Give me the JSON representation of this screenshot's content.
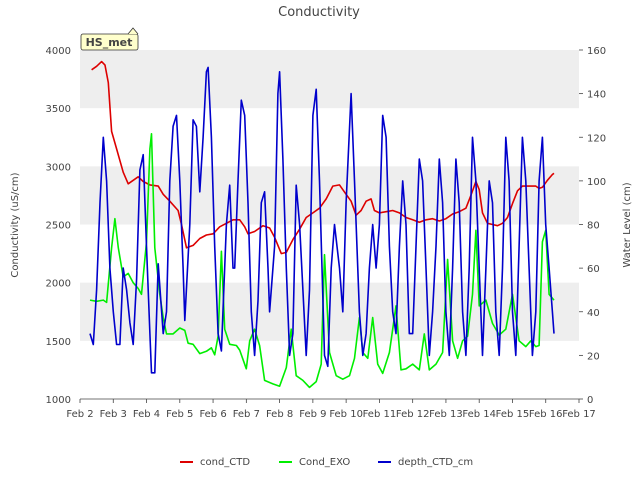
{
  "chart_data": {
    "type": "line",
    "title": "Conductivity",
    "badge": "HS_met",
    "ylabel": "Conductivity (uS/cm)",
    "y2label": "Water Level (cm)",
    "xlabel": "",
    "x_ticks": [
      "Feb 2",
      "Feb 3",
      "Feb 4",
      "Feb 5",
      "Feb 6",
      "Feb 7",
      "Feb 8",
      "Feb 9",
      "Feb 10",
      "Feb 11",
      "Feb 12",
      "Feb 13",
      "Feb 14",
      "Feb 15",
      "Feb 16",
      "Feb 17"
    ],
    "xlim": [
      2,
      17
    ],
    "ylim": [
      1000,
      4000
    ],
    "y_ticks": [
      1000,
      1500,
      2000,
      2500,
      3000,
      3500,
      4000
    ],
    "y2lim": [
      0,
      160
    ],
    "y2_ticks": [
      0,
      20,
      40,
      60,
      80,
      100,
      120,
      140,
      160
    ],
    "grid_bands": true,
    "legend_position": "bottom",
    "series": [
      {
        "name": "cond_CTD",
        "color": "#dd0000",
        "axis": "left",
        "points": [
          [
            2.35,
            3830
          ],
          [
            2.5,
            3860
          ],
          [
            2.65,
            3900
          ],
          [
            2.75,
            3870
          ],
          [
            2.85,
            3720
          ],
          [
            2.95,
            3300
          ],
          [
            3.1,
            3150
          ],
          [
            3.3,
            2950
          ],
          [
            3.45,
            2850
          ],
          [
            3.6,
            2880
          ],
          [
            3.75,
            2910
          ],
          [
            3.9,
            2870
          ],
          [
            4.1,
            2840
          ],
          [
            4.35,
            2830
          ],
          [
            4.5,
            2760
          ],
          [
            4.7,
            2700
          ],
          [
            4.95,
            2620
          ],
          [
            5.05,
            2500
          ],
          [
            5.2,
            2300
          ],
          [
            5.4,
            2320
          ],
          [
            5.6,
            2380
          ],
          [
            5.8,
            2410
          ],
          [
            6.0,
            2420
          ],
          [
            6.2,
            2480
          ],
          [
            6.4,
            2510
          ],
          [
            6.6,
            2540
          ],
          [
            6.8,
            2540
          ],
          [
            6.95,
            2480
          ],
          [
            7.05,
            2420
          ],
          [
            7.25,
            2440
          ],
          [
            7.5,
            2490
          ],
          [
            7.7,
            2470
          ],
          [
            7.85,
            2390
          ],
          [
            8.05,
            2250
          ],
          [
            8.2,
            2260
          ],
          [
            8.4,
            2370
          ],
          [
            8.6,
            2460
          ],
          [
            8.8,
            2560
          ],
          [
            9.0,
            2600
          ],
          [
            9.2,
            2640
          ],
          [
            9.4,
            2720
          ],
          [
            9.6,
            2830
          ],
          [
            9.8,
            2840
          ],
          [
            10.0,
            2760
          ],
          [
            10.15,
            2700
          ],
          [
            10.3,
            2580
          ],
          [
            10.45,
            2620
          ],
          [
            10.6,
            2700
          ],
          [
            10.75,
            2720
          ],
          [
            10.85,
            2620
          ],
          [
            11.0,
            2600
          ],
          [
            11.2,
            2610
          ],
          [
            11.4,
            2620
          ],
          [
            11.6,
            2600
          ],
          [
            11.8,
            2560
          ],
          [
            12.0,
            2540
          ],
          [
            12.2,
            2520
          ],
          [
            12.4,
            2540
          ],
          [
            12.6,
            2550
          ],
          [
            12.8,
            2530
          ],
          [
            13.0,
            2550
          ],
          [
            13.2,
            2590
          ],
          [
            13.4,
            2610
          ],
          [
            13.6,
            2640
          ],
          [
            13.75,
            2750
          ],
          [
            13.9,
            2870
          ],
          [
            14.0,
            2800
          ],
          [
            14.1,
            2600
          ],
          [
            14.25,
            2510
          ],
          [
            14.4,
            2500
          ],
          [
            14.55,
            2490
          ],
          [
            14.7,
            2510
          ],
          [
            14.85,
            2560
          ],
          [
            15.0,
            2680
          ],
          [
            15.15,
            2790
          ],
          [
            15.3,
            2830
          ],
          [
            15.5,
            2830
          ],
          [
            15.7,
            2830
          ],
          [
            15.8,
            2810
          ],
          [
            15.9,
            2820
          ],
          [
            16.05,
            2880
          ],
          [
            16.2,
            2930
          ],
          [
            16.25,
            2940
          ]
        ]
      },
      {
        "name": "Cond_EXO",
        "color": "#00ee00",
        "axis": "left",
        "points": [
          [
            2.3,
            1850
          ],
          [
            2.5,
            1840
          ],
          [
            2.7,
            1850
          ],
          [
            2.8,
            1830
          ],
          [
            2.95,
            2300
          ],
          [
            3.05,
            2550
          ],
          [
            3.15,
            2300
          ],
          [
            3.3,
            2050
          ],
          [
            3.45,
            2080
          ],
          [
            3.6,
            2000
          ],
          [
            3.75,
            1950
          ],
          [
            3.85,
            1900
          ],
          [
            4.0,
            2350
          ],
          [
            4.1,
            3150
          ],
          [
            4.15,
            3280
          ],
          [
            4.25,
            2300
          ],
          [
            4.4,
            1900
          ],
          [
            4.5,
            1700
          ],
          [
            4.6,
            1560
          ],
          [
            4.8,
            1560
          ],
          [
            5.0,
            1610
          ],
          [
            5.15,
            1590
          ],
          [
            5.25,
            1480
          ],
          [
            5.4,
            1470
          ],
          [
            5.6,
            1390
          ],
          [
            5.8,
            1410
          ],
          [
            5.95,
            1440
          ],
          [
            6.05,
            1380
          ],
          [
            6.15,
            1540
          ],
          [
            6.25,
            2270
          ],
          [
            6.35,
            1600
          ],
          [
            6.5,
            1470
          ],
          [
            6.7,
            1460
          ],
          [
            6.8,
            1420
          ],
          [
            7.0,
            1260
          ],
          [
            7.1,
            1500
          ],
          [
            7.25,
            1600
          ],
          [
            7.4,
            1460
          ],
          [
            7.55,
            1160
          ],
          [
            7.8,
            1130
          ],
          [
            8.0,
            1110
          ],
          [
            8.2,
            1270
          ],
          [
            8.35,
            1600
          ],
          [
            8.5,
            1200
          ],
          [
            8.7,
            1160
          ],
          [
            8.9,
            1100
          ],
          [
            9.1,
            1150
          ],
          [
            9.25,
            1300
          ],
          [
            9.35,
            2240
          ],
          [
            9.5,
            1400
          ],
          [
            9.7,
            1200
          ],
          [
            9.9,
            1170
          ],
          [
            10.1,
            1200
          ],
          [
            10.25,
            1350
          ],
          [
            10.4,
            1700
          ],
          [
            10.5,
            1400
          ],
          [
            10.65,
            1350
          ],
          [
            10.8,
            1700
          ],
          [
            10.95,
            1300
          ],
          [
            11.1,
            1220
          ],
          [
            11.3,
            1400
          ],
          [
            11.5,
            1800
          ],
          [
            11.65,
            1250
          ],
          [
            11.8,
            1260
          ],
          [
            12.0,
            1300
          ],
          [
            12.2,
            1250
          ],
          [
            12.35,
            1560
          ],
          [
            12.5,
            1250
          ],
          [
            12.7,
            1300
          ],
          [
            12.9,
            1400
          ],
          [
            13.05,
            2200
          ],
          [
            13.2,
            1500
          ],
          [
            13.35,
            1350
          ],
          [
            13.5,
            1500
          ],
          [
            13.65,
            1540
          ],
          [
            13.8,
            1900
          ],
          [
            13.9,
            2450
          ],
          [
            14.0,
            1800
          ],
          [
            14.2,
            1850
          ],
          [
            14.4,
            1650
          ],
          [
            14.6,
            1550
          ],
          [
            14.8,
            1600
          ],
          [
            15.0,
            1900
          ],
          [
            15.2,
            1500
          ],
          [
            15.4,
            1450
          ],
          [
            15.55,
            1500
          ],
          [
            15.7,
            1450
          ],
          [
            15.8,
            1460
          ],
          [
            15.9,
            2350
          ],
          [
            16.0,
            2450
          ],
          [
            16.1,
            1900
          ],
          [
            16.25,
            1850
          ]
        ]
      },
      {
        "name": "depth_CTD_cm",
        "color": "#0000cc",
        "axis": "right",
        "points": [
          [
            2.3,
            30
          ],
          [
            2.4,
            25
          ],
          [
            2.5,
            50
          ],
          [
            2.6,
            90
          ],
          [
            2.7,
            120
          ],
          [
            2.8,
            100
          ],
          [
            2.9,
            60
          ],
          [
            3.0,
            40
          ],
          [
            3.1,
            25
          ],
          [
            3.2,
            25
          ],
          [
            3.3,
            60
          ],
          [
            3.4,
            50
          ],
          [
            3.5,
            35
          ],
          [
            3.6,
            25
          ],
          [
            3.7,
            55
          ],
          [
            3.8,
            105
          ],
          [
            3.9,
            112
          ],
          [
            4.0,
            70
          ],
          [
            4.1,
            30
          ],
          [
            4.15,
            12
          ],
          [
            4.25,
            12
          ],
          [
            4.35,
            62
          ],
          [
            4.5,
            30
          ],
          [
            4.6,
            40
          ],
          [
            4.7,
            100
          ],
          [
            4.8,
            125
          ],
          [
            4.9,
            130
          ],
          [
            5.0,
            100
          ],
          [
            5.1,
            60
          ],
          [
            5.15,
            36
          ],
          [
            5.3,
            80
          ],
          [
            5.4,
            128
          ],
          [
            5.5,
            125
          ],
          [
            5.6,
            95
          ],
          [
            5.7,
            120
          ],
          [
            5.8,
            150
          ],
          [
            5.85,
            152
          ],
          [
            5.95,
            120
          ],
          [
            6.05,
            70
          ],
          [
            6.15,
            30
          ],
          [
            6.25,
            22
          ],
          [
            6.4,
            80
          ],
          [
            6.5,
            98
          ],
          [
            6.6,
            60
          ],
          [
            6.65,
            60
          ],
          [
            6.75,
            100
          ],
          [
            6.85,
            137
          ],
          [
            6.95,
            130
          ],
          [
            7.05,
            90
          ],
          [
            7.15,
            40
          ],
          [
            7.25,
            20
          ],
          [
            7.35,
            45
          ],
          [
            7.45,
            90
          ],
          [
            7.55,
            95
          ],
          [
            7.65,
            60
          ],
          [
            7.7,
            40
          ],
          [
            7.85,
            70
          ],
          [
            7.95,
            140
          ],
          [
            8.0,
            150
          ],
          [
            8.1,
            110
          ],
          [
            8.2,
            60
          ],
          [
            8.3,
            20
          ],
          [
            8.4,
            30
          ],
          [
            8.5,
            98
          ],
          [
            8.6,
            80
          ],
          [
            8.7,
            50
          ],
          [
            8.8,
            20
          ],
          [
            8.9,
            50
          ],
          [
            9.0,
            130
          ],
          [
            9.1,
            142
          ],
          [
            9.2,
            100
          ],
          [
            9.35,
            20
          ],
          [
            9.45,
            15
          ],
          [
            9.55,
            60
          ],
          [
            9.65,
            80
          ],
          [
            9.8,
            60
          ],
          [
            9.9,
            40
          ],
          [
            10.0,
            90
          ],
          [
            10.15,
            140
          ],
          [
            10.25,
            100
          ],
          [
            10.4,
            40
          ],
          [
            10.5,
            20
          ],
          [
            10.6,
            30
          ],
          [
            10.7,
            60
          ],
          [
            10.8,
            80
          ],
          [
            10.9,
            60
          ],
          [
            11.0,
            80
          ],
          [
            11.1,
            130
          ],
          [
            11.2,
            120
          ],
          [
            11.3,
            70
          ],
          [
            11.4,
            40
          ],
          [
            11.5,
            30
          ],
          [
            11.6,
            70
          ],
          [
            11.7,
            100
          ],
          [
            11.8,
            80
          ],
          [
            11.9,
            30
          ],
          [
            12.0,
            30
          ],
          [
            12.1,
            70
          ],
          [
            12.2,
            110
          ],
          [
            12.3,
            100
          ],
          [
            12.4,
            60
          ],
          [
            12.5,
            20
          ],
          [
            12.6,
            40
          ],
          [
            12.7,
            70
          ],
          [
            12.8,
            110
          ],
          [
            12.9,
            90
          ],
          [
            13.0,
            40
          ],
          [
            13.1,
            20
          ],
          [
            13.2,
            60
          ],
          [
            13.3,
            110
          ],
          [
            13.4,
            90
          ],
          [
            13.5,
            40
          ],
          [
            13.6,
            20
          ],
          [
            13.7,
            60
          ],
          [
            13.8,
            120
          ],
          [
            13.9,
            100
          ],
          [
            14.0,
            60
          ],
          [
            14.1,
            20
          ],
          [
            14.2,
            60
          ],
          [
            14.3,
            100
          ],
          [
            14.4,
            90
          ],
          [
            14.5,
            40
          ],
          [
            14.6,
            20
          ],
          [
            14.7,
            60
          ],
          [
            14.8,
            120
          ],
          [
            14.9,
            100
          ],
          [
            15.0,
            40
          ],
          [
            15.1,
            20
          ],
          [
            15.2,
            70
          ],
          [
            15.3,
            120
          ],
          [
            15.4,
            100
          ],
          [
            15.5,
            60
          ],
          [
            15.6,
            20
          ],
          [
            15.7,
            40
          ],
          [
            15.8,
            100
          ],
          [
            15.9,
            120
          ],
          [
            16.0,
            80
          ],
          [
            16.1,
            60
          ],
          [
            16.2,
            40
          ],
          [
            16.25,
            30
          ]
        ]
      }
    ]
  }
}
